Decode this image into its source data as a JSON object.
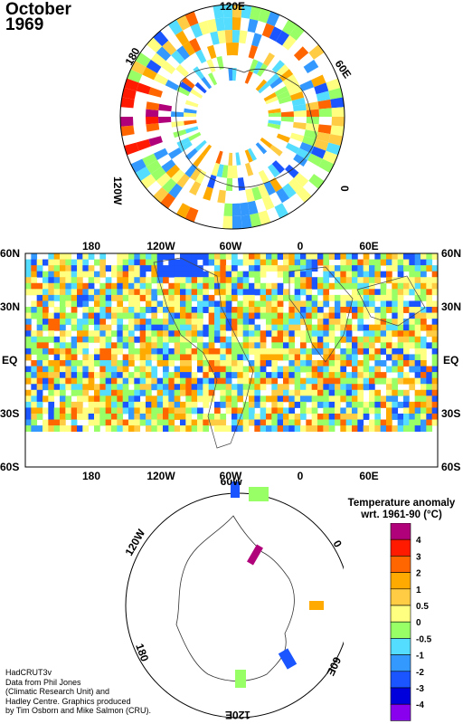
{
  "title": {
    "month": "October",
    "year": "1969"
  },
  "north_polar_labels": {
    "top": "120E",
    "right": "60E",
    "right_low": "0",
    "left": "180",
    "left_low": "120W"
  },
  "world_map": {
    "lon_labels": [
      "180",
      "120W",
      "60W",
      "0",
      "60E"
    ],
    "lat_labels": [
      "60N",
      "30N",
      "EQ",
      "30S",
      "60S"
    ]
  },
  "south_polar_labels": {
    "left": "120W",
    "right": "0",
    "bottom_left": "180",
    "bottom_right": "60E",
    "bottom": "120E",
    "top": "60W"
  },
  "legend": {
    "title_line1": "Temperature anomaly",
    "title_line2": "wrt. 1961-90  (°C)",
    "levels": [
      "4",
      "3",
      "2",
      "1",
      "0.5",
      "0",
      "-0.5",
      "-1",
      "-2",
      "-3",
      "-4"
    ],
    "colors": [
      "#b0007a",
      "#ff1a00",
      "#ff6600",
      "#ffaa00",
      "#ffcc44",
      "#ffff80",
      "#99ff66",
      "#55ddff",
      "#3399ff",
      "#1a55ff",
      "#0000dd",
      "#8800ee"
    ]
  },
  "credit": [
    "HadCRUT3v",
    "Data from Phil Jones",
    "(Climatic Research Unit) and",
    "Hadley Centre.  Graphics produced",
    "by Tim Osborn and Mike Salmon (CRU)."
  ]
}
